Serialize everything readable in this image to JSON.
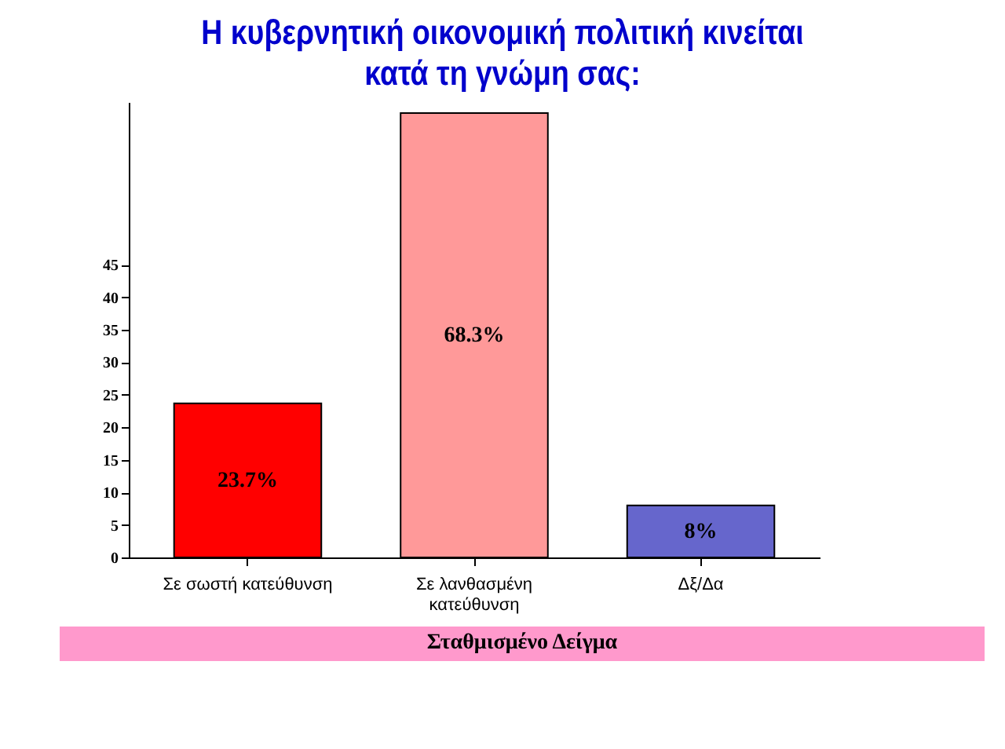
{
  "chart_data": {
    "type": "bar",
    "title": "Η κυβερνητική οικονομική πολιτική κινείται\nκατά τη γνώμη σας:",
    "categories": [
      "Σε σωστή κατεύθυνση",
      "Σε λανθασμένη κατεύθυνση",
      "Δξ/Δα"
    ],
    "values": [
      23.7,
      68.3,
      8
    ],
    "colors": [
      "#ff0000",
      "#ff9999",
      "#6666cc"
    ],
    "value_labels": [
      "23.7%",
      "68.3%",
      "8%"
    ],
    "ylim": [
      0,
      70
    ],
    "yticks": [
      0,
      5,
      10,
      15,
      20,
      25,
      30,
      35,
      40,
      45
    ],
    "grid": false,
    "annotations": [
      "Σταθμισμένο Δείγμα"
    ]
  }
}
